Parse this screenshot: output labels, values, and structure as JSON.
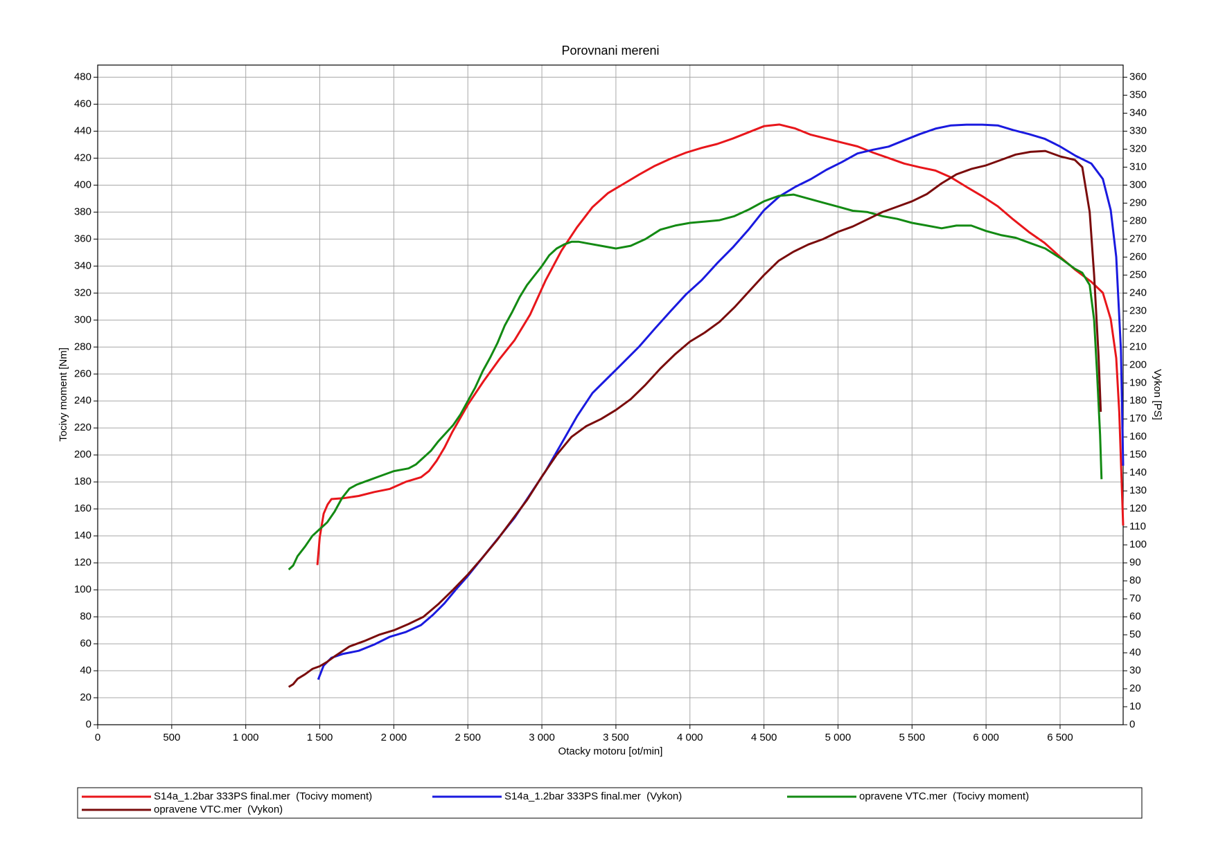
{
  "chart_data": {
    "type": "line",
    "title": "Porovnani mereni",
    "x_label": "Otacky motoru [ot/min]",
    "y_label": "Tocivy moment [Nm]",
    "y2_label": "Vykon [PS]",
    "xlim": [
      0,
      6926
    ],
    "ylim": [
      0,
      489
    ],
    "y2lim": [
      0,
      366.75
    ],
    "grid": true,
    "xticks": [
      0,
      500,
      {
        "value": 1000,
        "label": "1 000"
      },
      {
        "value": 1500,
        "label": "1 500"
      },
      {
        "value": 2000,
        "label": "2 000"
      },
      {
        "value": 2500,
        "label": "2 500"
      },
      {
        "value": 3000,
        "label": "3 000"
      },
      {
        "value": 3500,
        "label": "3 500"
      },
      {
        "value": 4000,
        "label": "4 000"
      },
      {
        "value": 4500,
        "label": "4 500"
      },
      {
        "value": 5000,
        "label": "5 000"
      },
      {
        "value": 5500,
        "label": "5 500"
      },
      {
        "value": 6000,
        "label": "6 000"
      },
      {
        "value": 6500,
        "label": "6 500"
      }
    ],
    "yticks": [
      0,
      20,
      40,
      60,
      80,
      100,
      120,
      140,
      160,
      180,
      200,
      220,
      240,
      260,
      280,
      300,
      320,
      340,
      360,
      380,
      400,
      420,
      440,
      460,
      480
    ],
    "y2ticks": [
      0,
      10,
      20,
      30,
      40,
      50,
      60,
      70,
      80,
      90,
      100,
      110,
      120,
      130,
      140,
      150,
      160,
      170,
      180,
      190,
      200,
      210,
      220,
      230,
      240,
      250,
      260,
      270,
      280,
      290,
      300,
      310,
      320,
      330,
      340,
      350,
      360
    ],
    "series": [
      {
        "name": "S14a_1.2bar 333PS final.mer  (Tocivy moment)",
        "color": "#e8161b",
        "axis": "y",
        "x": [
          1484,
          1500,
          1526,
          1553,
          1579,
          1658,
          1763,
          1868,
          1974,
          2079,
          2184,
          2237,
          2289,
          2342,
          2395,
          2500,
          2605,
          2711,
          2816,
          2921,
          3026,
          3132,
          3237,
          3342,
          3447,
          3553,
          3658,
          3763,
          3868,
          3974,
          4079,
          4184,
          4289,
          4395,
          4500,
          4605,
          4711,
          4816,
          4921,
          5026,
          5132,
          5237,
          5342,
          5447,
          5553,
          5658,
          5763,
          5868,
          5974,
          6079,
          6184,
          6289,
          6395,
          6500,
          6605,
          6711,
          6789,
          6842,
          6879,
          6900,
          6926
        ],
        "values": [
          118.3,
          139.1,
          156.4,
          163.3,
          167.3,
          167.9,
          169.6,
          172.5,
          174.8,
          180.0,
          183.5,
          188,
          195.6,
          205.4,
          217,
          237.2,
          254.5,
          270.6,
          285.1,
          304.1,
          329.5,
          351.4,
          368.7,
          383.7,
          394.1,
          401.0,
          407.9,
          414.3,
          419.5,
          424.1,
          427.6,
          430.5,
          434.5,
          439.1,
          443.7,
          444.9,
          442.0,
          437.4,
          434.5,
          431.6,
          428.7,
          424.1,
          420.1,
          416.0,
          413.2,
          410.8,
          405.7,
          398.7,
          391.8,
          384.3,
          374.5,
          365.3,
          357.2,
          346.8,
          337.0,
          328.3,
          320.2,
          300.6,
          271.8,
          231.4,
          147.7
        ]
      },
      {
        "name": "S14a_1.2bar 333PS final.mer  (Vykon)",
        "color": "#1a1adf",
        "axis": "y2",
        "x": [
          1489,
          1526,
          1579,
          1658,
          1763,
          1868,
          1974,
          2079,
          2184,
          2263,
          2342,
          2421,
          2500,
          2605,
          2711,
          2816,
          2921,
          3026,
          3132,
          3237,
          3342,
          3447,
          3553,
          3658,
          3763,
          3868,
          3974,
          4079,
          4184,
          4289,
          4395,
          4500,
          4605,
          4711,
          4816,
          4921,
          5026,
          5132,
          5237,
          5342,
          5447,
          5553,
          5658,
          5763,
          5868,
          5974,
          6079,
          6184,
          6289,
          6395,
          6500,
          6605,
          6711,
          6789,
          6842,
          6879,
          6911,
          6926
        ],
        "values": [
          25.1,
          32.9,
          37.2,
          39.4,
          41.1,
          44.6,
          48.9,
          51.5,
          55.4,
          61.0,
          67.5,
          75.3,
          82.7,
          93.5,
          104.3,
          115.1,
          128.1,
          141.1,
          156.3,
          171.4,
          184.4,
          193.0,
          201.6,
          210.3,
          220.2,
          229.8,
          239.3,
          247.1,
          256.6,
          265.3,
          275.2,
          286.0,
          293.8,
          299.0,
          303.3,
          308.5,
          312.8,
          317.6,
          319.7,
          321.4,
          324.9,
          328.4,
          331.4,
          333.2,
          333.6,
          333.6,
          333.2,
          330.6,
          328.4,
          325.8,
          321.5,
          316.3,
          312.0,
          303.4,
          286.0,
          260.1,
          208.2,
          144.0
        ]
      },
      {
        "name": "opravene VTC.mer  (Tocivy moment)",
        "color": "#138a13",
        "axis": "y",
        "x": [
          1290,
          1320,
          1350,
          1400,
          1450,
          1500,
          1550,
          1600,
          1650,
          1700,
          1750,
          1800,
          1850,
          1900,
          1950,
          2000,
          2050,
          2100,
          2150,
          2200,
          2250,
          2300,
          2350,
          2400,
          2450,
          2500,
          2550,
          2600,
          2650,
          2700,
          2750,
          2800,
          2850,
          2900,
          2950,
          3000,
          3050,
          3100,
          3150,
          3200,
          3250,
          3300,
          3400,
          3500,
          3600,
          3700,
          3800,
          3900,
          4000,
          4100,
          4200,
          4300,
          4400,
          4500,
          4600,
          4700,
          4800,
          4900,
          5000,
          5100,
          5200,
          5300,
          5400,
          5500,
          5600,
          5700,
          5800,
          5900,
          6000,
          6100,
          6200,
          6300,
          6400,
          6500,
          6600,
          6650,
          6700,
          6730,
          6750,
          6770,
          6780
        ],
        "values": [
          115,
          118,
          125,
          132,
          140,
          145,
          150,
          158,
          168,
          175,
          178,
          180,
          182,
          184,
          186,
          188,
          189,
          190,
          193,
          198,
          203,
          210,
          216,
          222,
          230,
          240,
          250,
          262,
          272,
          283,
          296,
          306,
          317,
          326,
          333,
          340,
          348,
          353,
          356,
          358,
          358,
          357,
          355,
          353,
          355,
          360,
          367,
          370,
          372,
          373,
          374,
          377,
          382,
          388,
          392,
          393,
          390,
          387,
          384,
          381,
          380,
          377,
          375,
          372,
          370,
          368,
          370,
          370,
          366,
          363,
          361,
          357,
          353,
          346,
          338,
          335,
          326,
          300,
          260,
          215,
          182
        ]
      },
      {
        "name": "opravene VTC.mer  (Vykon)",
        "color": "#7a0c0c",
        "axis": "y2",
        "x": [
          1290,
          1320,
          1350,
          1400,
          1450,
          1500,
          1550,
          1600,
          1700,
          1800,
          1900,
          2000,
          2100,
          2200,
          2300,
          2400,
          2500,
          2600,
          2700,
          2800,
          2900,
          3000,
          3100,
          3200,
          3300,
          3400,
          3500,
          3600,
          3700,
          3800,
          3900,
          4000,
          4100,
          4200,
          4300,
          4400,
          4500,
          4600,
          4700,
          4800,
          4900,
          5000,
          5100,
          5200,
          5300,
          5400,
          5500,
          5600,
          5700,
          5800,
          5900,
          6000,
          6100,
          6200,
          6300,
          6400,
          6500,
          6600,
          6650,
          6700,
          6730,
          6760,
          6775
        ],
        "values": [
          21,
          22.5,
          25.5,
          28,
          31,
          32.5,
          35,
          38,
          43.5,
          46.5,
          50,
          52.5,
          56,
          60,
          67,
          75,
          83.5,
          93,
          103,
          114,
          125,
          138,
          150,
          160,
          166,
          170,
          175,
          181,
          189,
          198,
          206,
          213,
          218,
          224,
          232,
          241,
          250,
          258,
          263,
          267,
          270,
          274,
          277,
          281,
          285,
          288,
          291,
          295,
          301,
          306,
          309,
          311,
          314,
          317,
          318.5,
          319,
          316,
          314,
          310,
          285,
          250,
          205,
          174
        ]
      }
    ]
  }
}
